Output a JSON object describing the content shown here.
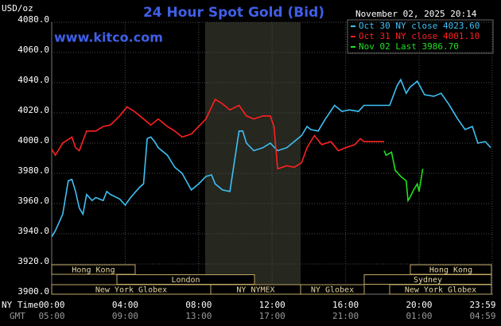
{
  "chart_data": {
    "type": "line",
    "title": "24 Hour Spot Gold (Bid)",
    "site": "www.kitco.com",
    "y_unit": "USD/oz",
    "timestamp": "November 02, 2025 20:14",
    "time_row_labels": [
      "NY Time",
      "GMT"
    ],
    "xlim": [
      0,
      24
    ],
    "xticks": [
      {
        "value": 0,
        "label": "00:00"
      },
      {
        "value": 4,
        "label": "04:00"
      },
      {
        "value": 8,
        "label": "08:00"
      },
      {
        "value": 12,
        "label": "12:00"
      },
      {
        "value": 16,
        "label": "16:00"
      },
      {
        "value": 20,
        "label": "20:00"
      },
      {
        "value": 23.98,
        "label": "23:59"
      }
    ],
    "gmt_labels": [
      "05:00",
      "09:00",
      "13:00",
      "17:00",
      "21:00",
      "01:00",
      "04:59"
    ],
    "ylim": [
      3900,
      4080
    ],
    "yticks": [
      {
        "value": 3900,
        "label": "3900.0"
      },
      {
        "value": 3920,
        "label": "3920.0"
      },
      {
        "value": 3940,
        "label": "3940.0"
      },
      {
        "value": 3960,
        "label": "3960.0"
      },
      {
        "value": 3980,
        "label": "3980.0"
      },
      {
        "value": 4000,
        "label": "4000.0"
      },
      {
        "value": 4020,
        "label": "4020.0"
      },
      {
        "value": 4040,
        "label": "4040.0"
      },
      {
        "value": 4060,
        "label": "4060.0"
      },
      {
        "value": 4080,
        "label": "4080.0"
      }
    ],
    "grid": true,
    "sessions": [
      "Hong Kong",
      "London",
      "New York Globex",
      "NY NYMEX",
      "NY Globex",
      "Sydney",
      "Hong Kong",
      "New York Globex"
    ],
    "series": [
      {
        "name": "Oct 30 NY close 4023.60",
        "color": "#3ec0f5",
        "x": [
          0.0,
          0.2,
          0.6,
          0.9,
          1.1,
          1.3,
          1.5,
          1.7,
          1.9,
          2.2,
          2.4,
          2.8,
          3.0,
          3.2,
          3.7,
          4.0,
          4.3,
          4.8,
          5.0,
          5.2,
          5.4,
          5.6,
          5.8,
          6.3,
          6.7,
          7.1,
          7.6,
          8.0,
          8.4,
          8.7,
          8.9,
          9.3,
          9.7,
          9.9,
          10.2,
          10.4,
          10.6,
          11.0,
          11.5,
          11.9,
          12.3,
          12.8,
          13.2,
          13.6,
          13.9,
          14.1,
          14.5,
          14.9,
          15.4,
          15.8,
          16.2,
          16.7,
          17.0,
          18.4,
          18.8,
          19.0,
          19.3,
          19.5,
          19.9,
          20.3,
          20.8,
          21.2,
          21.6,
          22.1,
          22.5,
          22.9,
          23.2,
          23.6,
          23.9
        ],
        "values": [
          3938,
          3942,
          3953,
          3975,
          3976,
          3968,
          3957,
          3953,
          3966,
          3962,
          3964,
          3962,
          3968,
          3966,
          3963,
          3959,
          3964,
          3971,
          3973,
          4003,
          4004,
          4001,
          3997,
          3992,
          3984,
          3980,
          3969,
          3973,
          3978,
          3979,
          3973,
          3969,
          3968,
          3984,
          4008,
          4008,
          4000,
          3995,
          3997,
          4000,
          3995,
          3997,
          4001,
          4005,
          4011,
          4009,
          4008,
          4016,
          4025,
          4021,
          4022,
          4021,
          4025,
          4025,
          4038,
          4042,
          4033,
          4037,
          4041,
          4032,
          4031,
          4033,
          4026,
          4016,
          4009,
          4011,
          4000,
          4001,
          3997
        ]
      },
      {
        "name": "Oct 31 NY close 4001.10",
        "color": "#ff2020",
        "x": [
          0.0,
          0.2,
          0.6,
          1.1,
          1.3,
          1.5,
          1.9,
          2.4,
          2.8,
          3.2,
          3.7,
          4.1,
          4.5,
          5.0,
          5.4,
          5.8,
          6.3,
          6.7,
          7.1,
          7.6,
          8.0,
          8.4,
          8.9,
          9.3,
          9.7,
          10.2,
          10.6,
          11.0,
          11.5,
          11.9,
          12.1,
          12.3,
          12.8,
          13.2,
          13.6,
          13.9,
          14.3,
          14.7,
          15.2,
          15.6,
          16.0,
          16.5,
          16.8,
          17.0,
          18.1
        ],
        "values": [
          3996,
          3992,
          4000,
          4004,
          3997,
          3995,
          4008,
          4008,
          4011,
          4012,
          4018,
          4024,
          4021,
          4016,
          4012,
          4016,
          4011,
          4008,
          4004,
          4006,
          4011,
          4016,
          4029,
          4026,
          4022,
          4025,
          4018,
          4016,
          4018,
          4018,
          4011,
          3983,
          3985,
          3984,
          3987,
          3997,
          4005,
          3999,
          4001,
          3995,
          3997,
          3999,
          4003,
          4001,
          4001
        ]
      },
      {
        "name": "Nov 02 Last 3986.70",
        "color": "#20e020",
        "x": [
          18.1,
          18.2,
          18.5,
          18.7,
          19.0,
          19.3,
          19.4,
          19.5,
          19.7,
          19.9,
          20.0,
          20.2
        ],
        "values": [
          3995,
          3992,
          3994,
          3982,
          3978,
          3975,
          3962,
          3964,
          3969,
          3973,
          3968,
          3983
        ]
      }
    ]
  }
}
